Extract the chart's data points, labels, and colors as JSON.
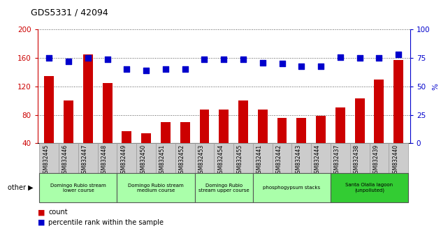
{
  "title": "GDS5331 / 42094",
  "samples": [
    "GSM832445",
    "GSM832446",
    "GSM832447",
    "GSM832448",
    "GSM832449",
    "GSM832450",
    "GSM832451",
    "GSM832452",
    "GSM832453",
    "GSM832454",
    "GSM832455",
    "GSM832441",
    "GSM832442",
    "GSM832443",
    "GSM832444",
    "GSM832437",
    "GSM832438",
    "GSM832439",
    "GSM832440"
  ],
  "counts": [
    135,
    100,
    165,
    125,
    57,
    54,
    70,
    70,
    87,
    87,
    100,
    87,
    76,
    76,
    79,
    90,
    103,
    130,
    157
  ],
  "percentiles": [
    75,
    72,
    75,
    74,
    65,
    64,
    65,
    65,
    74,
    74,
    74,
    71,
    70,
    68,
    68,
    76,
    75,
    75,
    78
  ],
  "bar_color": "#cc0000",
  "dot_color": "#0000cc",
  "ylim_left": [
    40,
    200
  ],
  "ylim_right": [
    0,
    100
  ],
  "yticks_left": [
    40,
    80,
    120,
    160,
    200
  ],
  "yticks_right": [
    0,
    25,
    50,
    75,
    100
  ],
  "groups": [
    {
      "label": "Domingo Rubio stream\nlower course",
      "start": 0,
      "end": 4,
      "light": true
    },
    {
      "label": "Domingo Rubio stream\nmedium course",
      "start": 4,
      "end": 8,
      "light": true
    },
    {
      "label": "Domingo Rubio\nstream upper course",
      "start": 8,
      "end": 11,
      "light": true
    },
    {
      "label": "phosphogypsum stacks",
      "start": 11,
      "end": 15,
      "light": true
    },
    {
      "label": "Santa Olalla lagoon\n(unpolluted)",
      "start": 15,
      "end": 19,
      "light": false
    }
  ],
  "light_group_color": "#aaffaa",
  "dark_group_color": "#33cc33",
  "legend_count_color": "#cc0000",
  "legend_pct_color": "#0000cc",
  "other_label": "other",
  "bar_width": 0.5,
  "dot_size": 40,
  "dot_marker": "s",
  "grid_linestyle": "dotted",
  "grid_color": "#555555",
  "xtick_bg": "#cccccc",
  "spine_color": "#000000"
}
